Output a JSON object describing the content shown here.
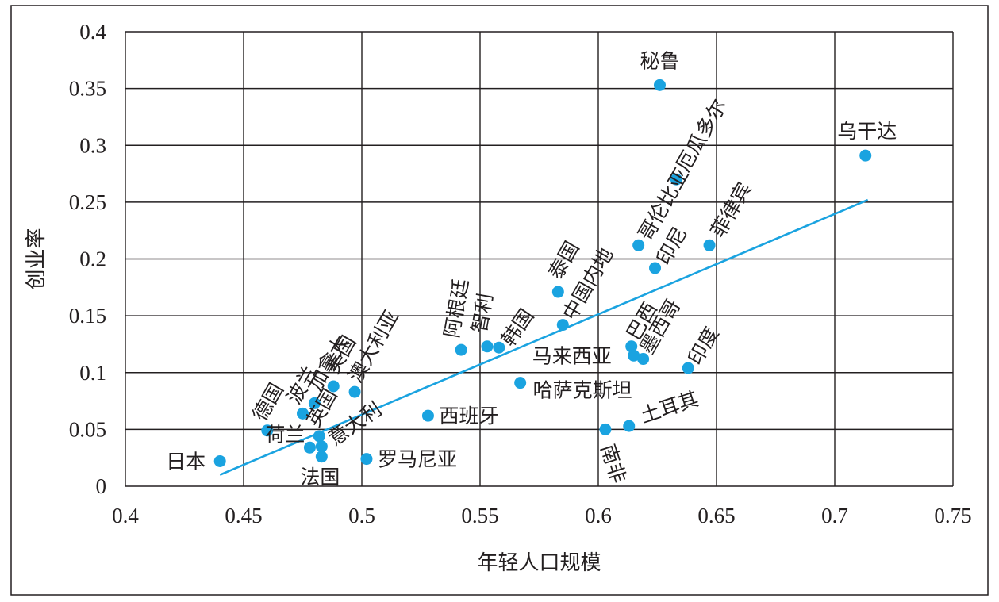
{
  "chart_data": {
    "type": "scatter",
    "title": "",
    "xlabel": "年轻人口规模",
    "ylabel": "创业率",
    "xlim": [
      0.4,
      0.75
    ],
    "ylim": [
      0,
      0.4
    ],
    "x_ticks": [
      0.4,
      0.45,
      0.5,
      0.55,
      0.6,
      0.65,
      0.7,
      0.75
    ],
    "y_ticks": [
      0,
      0.05,
      0.1,
      0.15,
      0.2,
      0.25,
      0.3,
      0.35,
      0.4
    ],
    "x_tick_labels": [
      "0.4",
      "0.45",
      "0.5",
      "0.55",
      "0.6",
      "0.65",
      "0.7",
      "0.75"
    ],
    "y_tick_labels": [
      "0",
      "0.05",
      "0.1",
      "0.15",
      "0.2",
      "0.25",
      "0.3",
      "0.35",
      "0.4"
    ],
    "grid": true,
    "point_color": "#1aa3e0",
    "trendline": {
      "x": [
        0.44,
        0.714
      ],
      "y": [
        0.01,
        0.252
      ]
    },
    "points": [
      {
        "label": "日本",
        "x": 0.44,
        "y": 0.022
      },
      {
        "label": "德国",
        "x": 0.46,
        "y": 0.049
      },
      {
        "label": "波兰",
        "x": 0.475,
        "y": 0.064
      },
      {
        "label": "加拿大",
        "x": 0.48,
        "y": 0.073
      },
      {
        "label": "美国",
        "x": 0.488,
        "y": 0.088
      },
      {
        "label": "澳大利亚",
        "x": 0.497,
        "y": 0.083
      },
      {
        "label": "荷兰",
        "x": 0.478,
        "y": 0.034
      },
      {
        "label": "英国",
        "x": 0.482,
        "y": 0.044
      },
      {
        "label": "意大利",
        "x": 0.483,
        "y": 0.035
      },
      {
        "label": "法国",
        "x": 0.483,
        "y": 0.026
      },
      {
        "label": "罗马尼亚",
        "x": 0.502,
        "y": 0.024
      },
      {
        "label": "西班牙",
        "x": 0.528,
        "y": 0.062
      },
      {
        "label": "阿根廷",
        "x": 0.542,
        "y": 0.12
      },
      {
        "label": "智利",
        "x": 0.553,
        "y": 0.123
      },
      {
        "label": "韩国",
        "x": 0.558,
        "y": 0.122
      },
      {
        "label": "哈萨克斯坦",
        "x": 0.567,
        "y": 0.091
      },
      {
        "label": "泰国",
        "x": 0.583,
        "y": 0.171
      },
      {
        "label": "中国内地",
        "x": 0.585,
        "y": 0.142
      },
      {
        "label": "南非",
        "x": 0.603,
        "y": 0.05
      },
      {
        "label": "土耳其",
        "x": 0.613,
        "y": 0.053
      },
      {
        "label": "巴西",
        "x": 0.614,
        "y": 0.123
      },
      {
        "label": "马来西亚",
        "x": 0.615,
        "y": 0.115
      },
      {
        "label": "墨西哥",
        "x": 0.619,
        "y": 0.112
      },
      {
        "label": "哥伦比亚",
        "x": 0.617,
        "y": 0.212
      },
      {
        "label": "印尼",
        "x": 0.624,
        "y": 0.192
      },
      {
        "label": "秘鲁",
        "x": 0.626,
        "y": 0.353
      },
      {
        "label": "厄瓜多尔",
        "x": 0.633,
        "y": 0.27
      },
      {
        "label": "印度",
        "x": 0.638,
        "y": 0.104
      },
      {
        "label": "菲律宾",
        "x": 0.647,
        "y": 0.212
      },
      {
        "label": "乌干达",
        "x": 0.713,
        "y": 0.291
      }
    ]
  }
}
